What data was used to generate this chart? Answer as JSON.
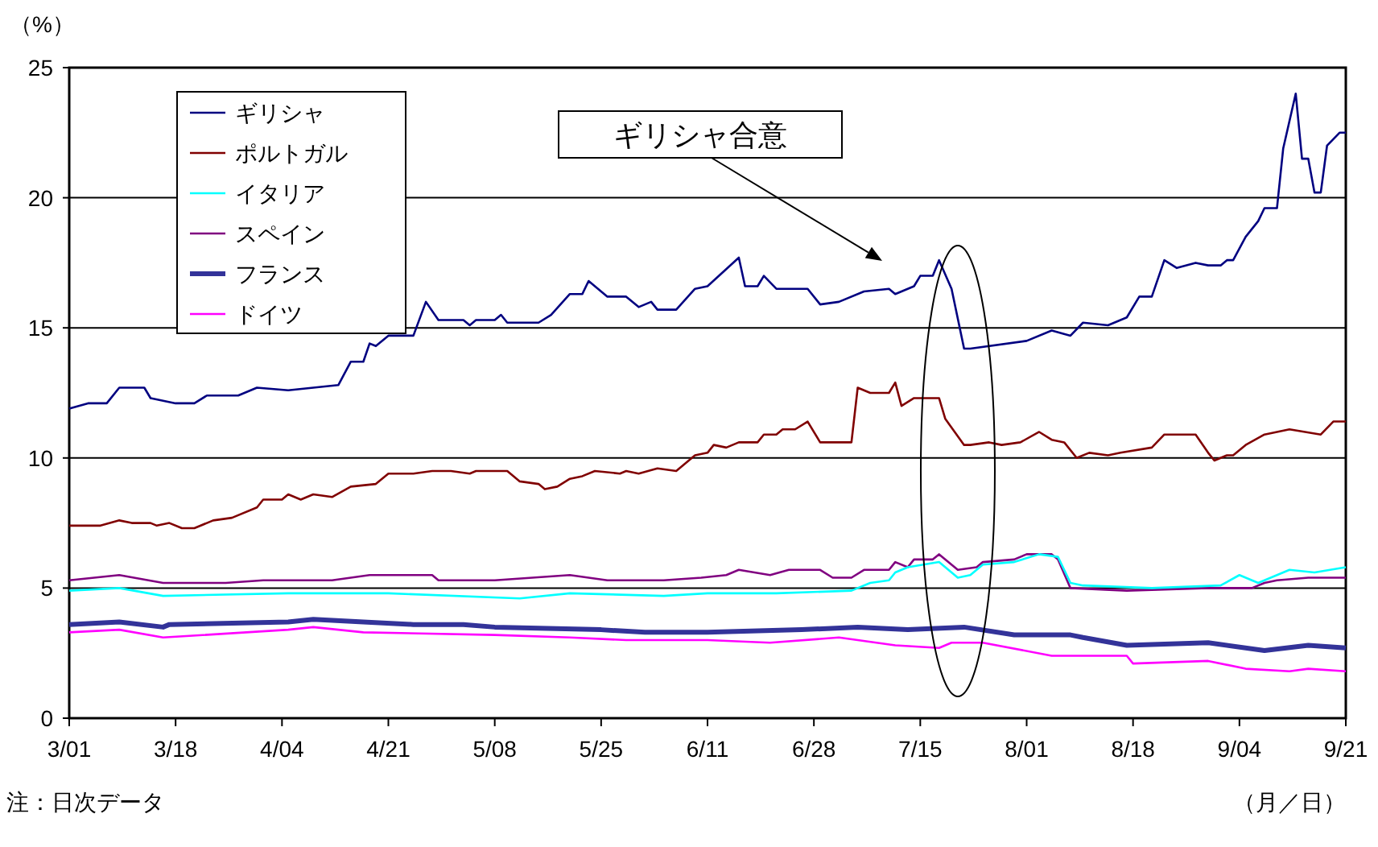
{
  "chart_data": {
    "type": "line",
    "ylabel": "（%）",
    "xlabel": "（月／日）",
    "xlim": [
      "--03-01",
      "--09-21"
    ],
    "xticks": [
      {
        "value": "--03-01",
        "label": "3/01"
      },
      {
        "value": "--03-18",
        "label": "3/18"
      },
      {
        "value": "--04-04",
        "label": "4/04"
      },
      {
        "value": "--04-21",
        "label": "4/21"
      },
      {
        "value": "--05-08",
        "label": "5/08"
      },
      {
        "value": "--05-25",
        "label": "5/25"
      },
      {
        "value": "--06-11",
        "label": "6/11"
      },
      {
        "value": "--06-28",
        "label": "6/28"
      },
      {
        "value": "--07-15",
        "label": "7/15"
      },
      {
        "value": "--08-01",
        "label": "8/01"
      },
      {
        "value": "--08-18",
        "label": "8/18"
      },
      {
        "value": "--09-04",
        "label": "9/04"
      },
      {
        "value": "--09-21",
        "label": "9/21"
      }
    ],
    "ylim": [
      0,
      25
    ],
    "yticks": [
      0,
      5,
      10,
      15,
      20,
      25
    ],
    "grid": "y",
    "legend": "top left",
    "marker": "none",
    "line_style": "solid",
    "annotations": [
      "ギリシャ合意",
      "注：日次データ"
    ],
    "series": [
      {
        "name": "ギリシャ",
        "color": "#000080",
        "x": [
          "--03-01",
          "--03-04",
          "--03-07",
          "--03-09",
          "--03-13",
          "--03-14",
          "--03-18",
          "--03-21",
          "--03-23",
          "--03-28",
          "--03-31",
          "--04-05",
          "--04-09",
          "--04-13",
          "--04-15",
          "--04-17",
          "--04-18",
          "--04-19",
          "--04-21",
          "--04-25",
          "--04-27",
          "--04-29",
          "--05-03",
          "--05-04",
          "--05-05",
          "--05-08",
          "--05-09",
          "--05-10",
          "--05-15",
          "--05-17",
          "--05-20",
          "--05-22",
          "--05-23",
          "--05-26",
          "--05-29",
          "--05-31",
          "--06-02",
          "--06-03",
          "--06-06",
          "--06-09",
          "--06-11",
          "--06-16",
          "--06-17",
          "--06-19",
          "--06-20",
          "--06-22",
          "--06-27",
          "--06-29",
          "--07-02",
          "--07-06",
          "--07-10",
          "--07-11",
          "--07-14",
          "--07-15",
          "--07-17",
          "--07-18",
          "--07-20",
          "--07-22",
          "--07-23",
          "--08-01",
          "--08-05",
          "--08-08",
          "--08-10",
          "--08-14",
          "--08-17",
          "--08-19",
          "--08-21",
          "--08-23",
          "--08-25",
          "--08-28",
          "--08-30",
          "--09-01",
          "--09-02",
          "--09-03",
          "--09-05",
          "--09-07",
          "--09-08",
          "--09-10",
          "--09-11",
          "--09-13",
          "--09-14",
          "--09-15",
          "--09-16",
          "--09-17",
          "--09-18",
          "--09-20",
          "--09-21"
        ],
        "values": [
          11.9,
          12.1,
          12.1,
          12.7,
          12.7,
          12.3,
          12.1,
          12.1,
          12.4,
          12.4,
          12.7,
          12.6,
          12.7,
          12.8,
          13.7,
          13.7,
          14.4,
          14.3,
          14.7,
          14.7,
          16.0,
          15.3,
          15.3,
          15.1,
          15.3,
          15.3,
          15.5,
          15.2,
          15.2,
          15.5,
          16.3,
          16.3,
          16.8,
          16.2,
          16.2,
          15.8,
          16.0,
          15.7,
          15.7,
          16.5,
          16.6,
          17.7,
          16.6,
          16.6,
          17.0,
          16.5,
          16.5,
          15.9,
          16.0,
          16.4,
          16.5,
          16.3,
          16.6,
          17.0,
          17.0,
          17.6,
          16.5,
          14.2,
          14.2,
          14.5,
          14.9,
          14.7,
          15.2,
          15.1,
          15.4,
          16.2,
          16.2,
          17.6,
          17.3,
          17.5,
          17.4,
          17.4,
          17.6,
          17.6,
          18.5,
          19.1,
          19.6,
          19.6,
          21.9,
          24.0,
          21.5,
          21.5,
          20.2,
          20.2,
          22.0,
          22.5,
          22.5
        ]
      },
      {
        "name": "ポルトガル",
        "color": "#800000",
        "x": [
          "--03-01",
          "--03-06",
          "--03-09",
          "--03-11",
          "--03-14",
          "--03-15",
          "--03-17",
          "--03-19",
          "--03-21",
          "--03-24",
          "--03-27",
          "--03-31",
          "--04-01",
          "--04-04",
          "--04-05",
          "--04-07",
          "--04-09",
          "--04-12",
          "--04-15",
          "--04-19",
          "--04-21",
          "--04-25",
          "--04-28",
          "--05-01",
          "--05-04",
          "--05-05",
          "--05-10",
          "--05-12",
          "--05-15",
          "--05-16",
          "--05-18",
          "--05-20",
          "--05-22",
          "--05-24",
          "--05-28",
          "--05-29",
          "--05-31",
          "--06-03",
          "--06-06",
          "--06-09",
          "--06-11",
          "--06-12",
          "--06-14",
          "--06-16",
          "--06-19",
          "--06-20",
          "--06-22",
          "--06-23",
          "--06-25",
          "--06-27",
          "--06-29",
          "--07-04",
          "--07-05",
          "--07-07",
          "--07-10",
          "--07-11",
          "--07-12",
          "--07-14",
          "--07-18",
          "--07-19",
          "--07-22",
          "--07-23",
          "--07-26",
          "--07-28",
          "--07-31",
          "--08-03",
          "--08-05",
          "--08-07",
          "--08-09",
          "--08-11",
          "--08-14",
          "--08-16",
          "--08-21",
          "--08-23",
          "--08-28",
          "--08-30",
          "--08-31",
          "--09-02",
          "--09-03",
          "--09-05",
          "--09-08",
          "--09-12",
          "--09-17",
          "--09-19",
          "--09-21"
        ],
        "values": [
          7.4,
          7.4,
          7.6,
          7.5,
          7.5,
          7.4,
          7.5,
          7.3,
          7.3,
          7.6,
          7.7,
          8.1,
          8.4,
          8.4,
          8.6,
          8.4,
          8.6,
          8.5,
          8.9,
          9.0,
          9.4,
          9.4,
          9.5,
          9.5,
          9.4,
          9.5,
          9.5,
          9.1,
          9.0,
          8.8,
          8.9,
          9.2,
          9.3,
          9.5,
          9.4,
          9.5,
          9.4,
          9.6,
          9.5,
          10.1,
          10.2,
          10.5,
          10.4,
          10.6,
          10.6,
          10.9,
          10.9,
          11.1,
          11.1,
          11.4,
          10.6,
          10.6,
          12.7,
          12.5,
          12.5,
          12.9,
          12.0,
          12.3,
          12.3,
          11.5,
          10.5,
          10.5,
          10.6,
          10.5,
          10.6,
          11.0,
          10.7,
          10.6,
          10.0,
          10.2,
          10.1,
          10.2,
          10.4,
          10.9,
          10.9,
          10.2,
          9.9,
          10.1,
          10.1,
          10.5,
          10.9,
          11.1,
          10.9,
          11.4,
          11.4
        ]
      },
      {
        "name": "イタリア",
        "color": "#00ffff",
        "x": [
          "--03-01",
          "--03-09",
          "--03-16",
          "--04-05",
          "--04-21",
          "--05-12",
          "--05-20",
          "--06-04",
          "--06-11",
          "--06-22",
          "--07-04",
          "--07-07",
          "--07-10",
          "--07-11",
          "--07-13",
          "--07-18",
          "--07-21",
          "--07-23",
          "--07-25",
          "--07-30",
          "--08-03",
          "--08-06",
          "--08-08",
          "--08-10",
          "--08-21",
          "--09-01",
          "--09-04",
          "--09-07",
          "--09-12",
          "--09-16",
          "--09-21"
        ],
        "values": [
          4.9,
          5.0,
          4.7,
          4.8,
          4.8,
          4.6,
          4.8,
          4.7,
          4.8,
          4.8,
          4.9,
          5.2,
          5.3,
          5.6,
          5.8,
          6.0,
          5.4,
          5.5,
          5.9,
          6.0,
          6.3,
          6.2,
          5.2,
          5.1,
          5.0,
          5.1,
          5.5,
          5.2,
          5.7,
          5.6,
          5.8
        ]
      },
      {
        "name": "スペイン",
        "color": "#800080",
        "x": [
          "--03-01",
          "--03-09",
          "--03-16",
          "--03-26",
          "--04-01",
          "--04-12",
          "--04-18",
          "--04-28",
          "--04-29",
          "--05-08",
          "--05-20",
          "--05-26",
          "--06-04",
          "--06-10",
          "--06-14",
          "--06-16",
          "--06-21",
          "--06-24",
          "--06-29",
          "--07-01",
          "--07-04",
          "--07-06",
          "--07-10",
          "--07-11",
          "--07-13",
          "--07-14",
          "--07-17",
          "--07-18",
          "--07-21",
          "--07-24",
          "--07-25",
          "--07-30",
          "--08-01",
          "--08-05",
          "--08-06",
          "--08-08",
          "--08-17",
          "--08-30",
          "--09-06",
          "--09-08",
          "--09-10",
          "--09-15",
          "--09-21"
        ],
        "values": [
          5.3,
          5.5,
          5.2,
          5.2,
          5.3,
          5.3,
          5.5,
          5.5,
          5.3,
          5.3,
          5.5,
          5.3,
          5.3,
          5.4,
          5.5,
          5.7,
          5.5,
          5.7,
          5.7,
          5.4,
          5.4,
          5.7,
          5.7,
          6.0,
          5.8,
          6.1,
          6.1,
          6.3,
          5.7,
          5.8,
          6.0,
          6.1,
          6.3,
          6.3,
          6.1,
          5.0,
          4.9,
          5.0,
          5.0,
          5.2,
          5.3,
          5.4,
          5.4
        ]
      },
      {
        "name": "フランス",
        "color": "#333399",
        "x": [
          "--03-01",
          "--03-09",
          "--03-16",
          "--03-17",
          "--04-05",
          "--04-09",
          "--04-17",
          "--04-25",
          "--05-03",
          "--05-08",
          "--05-25",
          "--06-01",
          "--06-11",
          "--06-26",
          "--07-05",
          "--07-13",
          "--07-22",
          "--07-30",
          "--08-08",
          "--08-10",
          "--08-17",
          "--08-30",
          "--09-08",
          "--09-15",
          "--09-21"
        ],
        "values": [
          3.6,
          3.7,
          3.5,
          3.6,
          3.7,
          3.8,
          3.7,
          3.6,
          3.6,
          3.5,
          3.4,
          3.3,
          3.3,
          3.4,
          3.5,
          3.4,
          3.5,
          3.2,
          3.2,
          3.1,
          2.8,
          2.9,
          2.6,
          2.8,
          2.7
        ]
      },
      {
        "name": "ドイツ",
        "color": "#ff00ff",
        "x": [
          "--03-01",
          "--03-09",
          "--03-16",
          "--04-05",
          "--04-09",
          "--04-17",
          "--05-08",
          "--05-20",
          "--05-29",
          "--06-11",
          "--06-21",
          "--07-02",
          "--07-11",
          "--07-18",
          "--07-20",
          "--07-25",
          "--08-05",
          "--08-17",
          "--08-18",
          "--08-30",
          "--09-05",
          "--09-12",
          "--09-15",
          "--09-21"
        ],
        "values": [
          3.3,
          3.4,
          3.1,
          3.4,
          3.5,
          3.3,
          3.2,
          3.1,
          3.0,
          3.0,
          2.9,
          3.1,
          2.8,
          2.7,
          2.9,
          2.9,
          2.4,
          2.4,
          2.1,
          2.2,
          1.9,
          1.8,
          1.9,
          1.8
        ]
      }
    ]
  }
}
